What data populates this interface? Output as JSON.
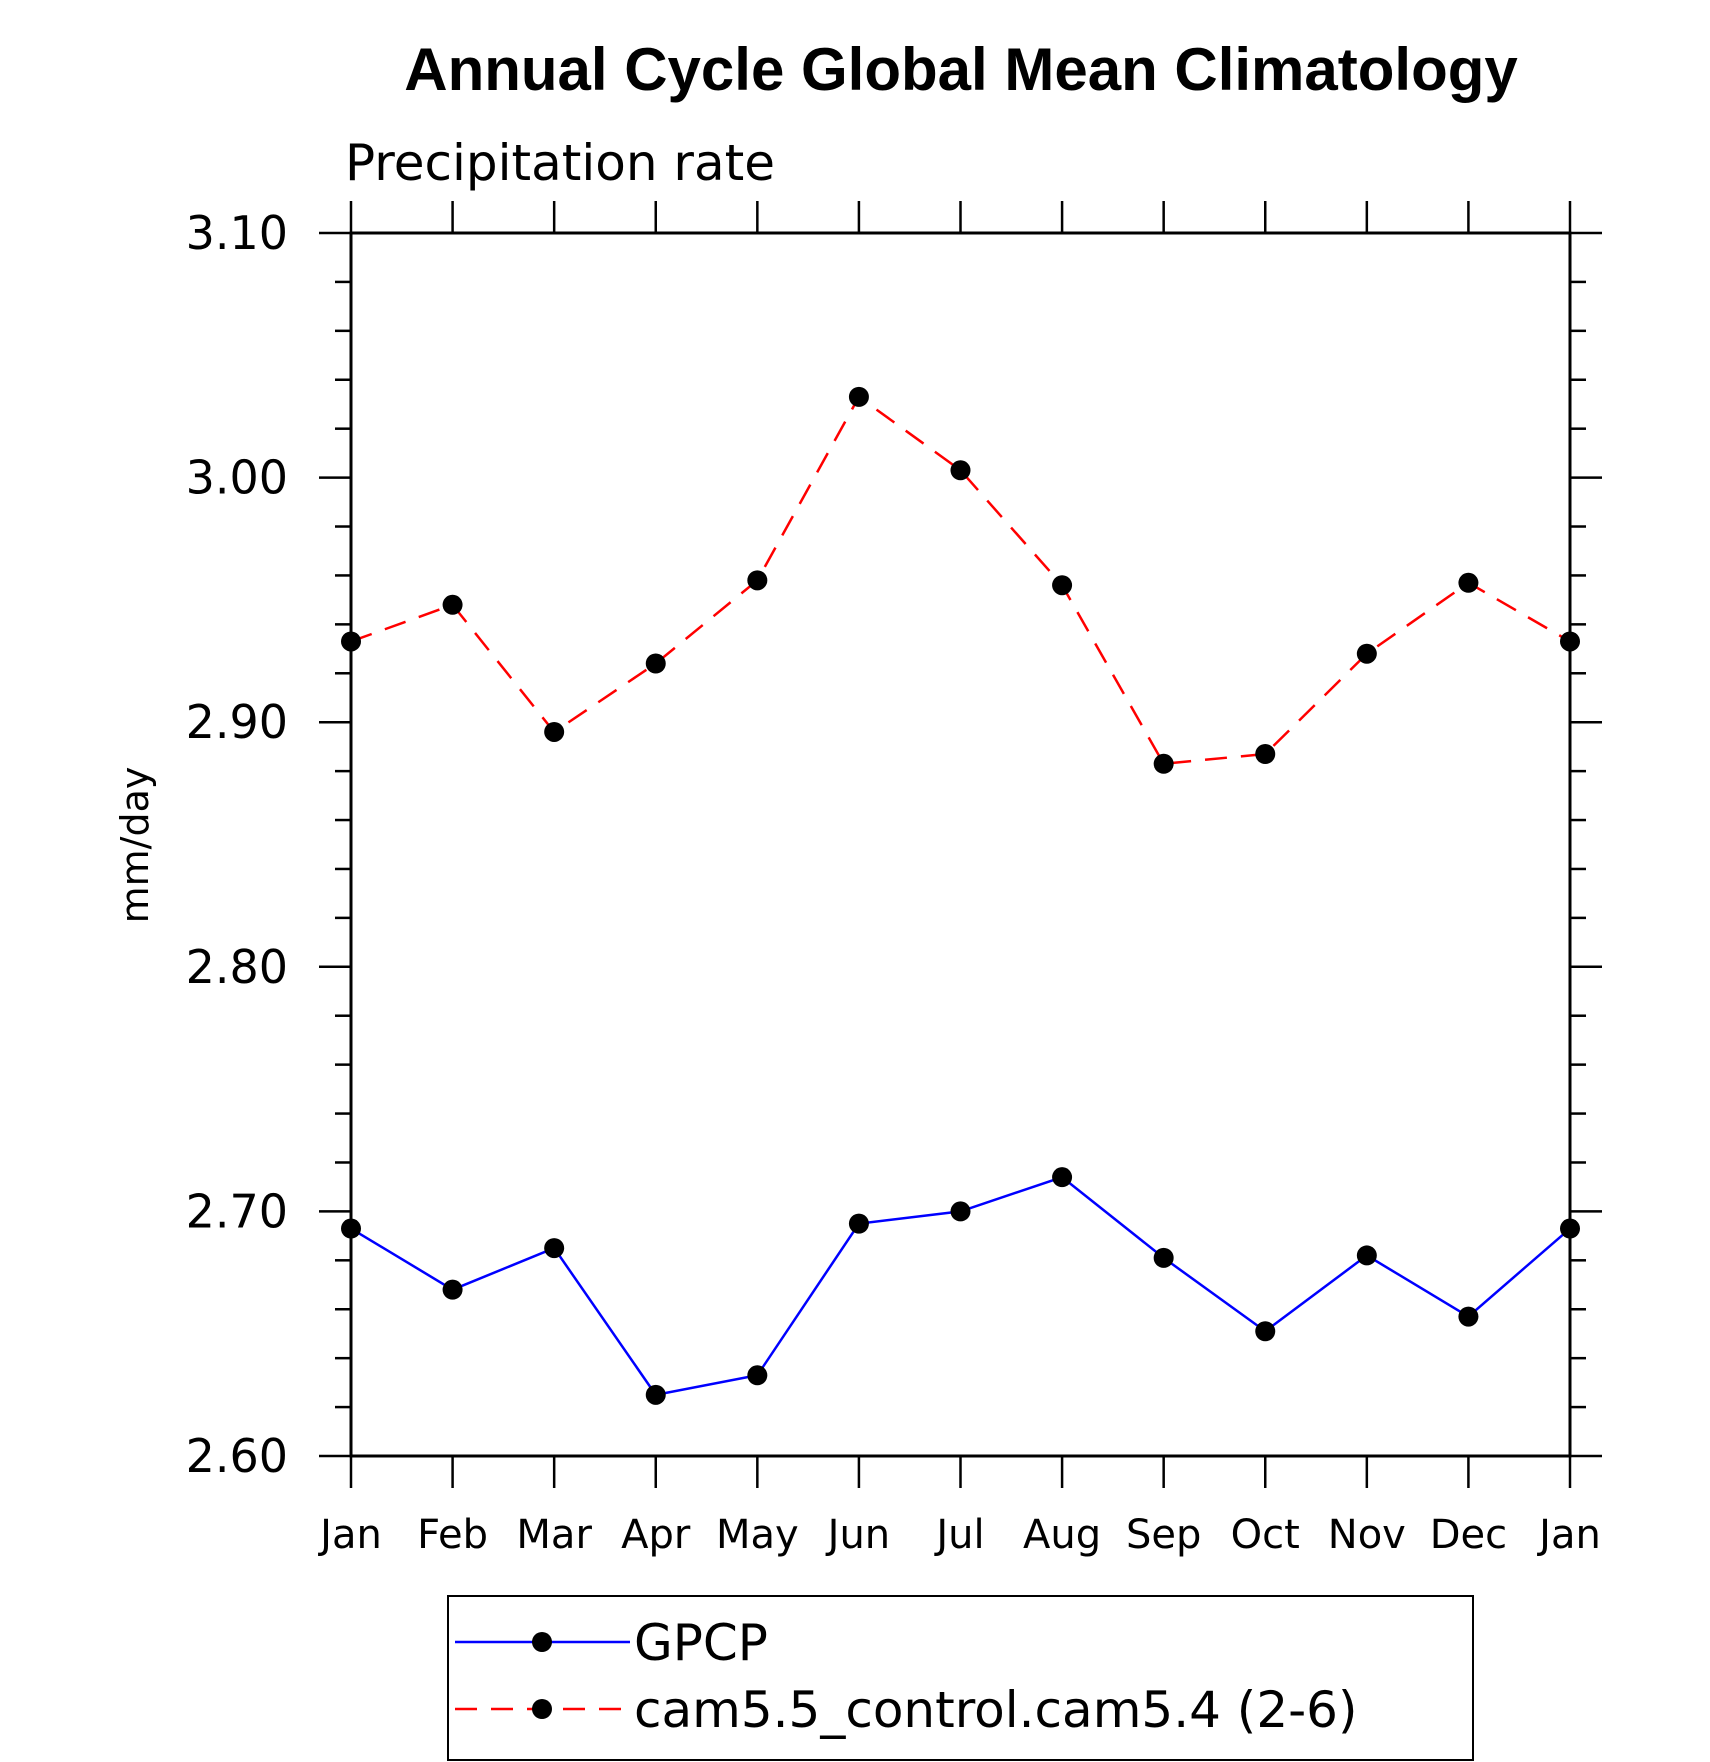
{
  "chart_data": {
    "type": "line",
    "title": "Annual Cycle Global Mean Climatology",
    "subtitle": "Precipitation rate",
    "ylabel": "mm/day",
    "categories": [
      "Jan",
      "Feb",
      "Mar",
      "Apr",
      "May",
      "Jun",
      "Jul",
      "Aug",
      "Sep",
      "Oct",
      "Nov",
      "Dec",
      "Jan"
    ],
    "ylim": [
      2.6,
      3.1
    ],
    "yticks": [
      "2.60",
      "2.70",
      "2.80",
      "2.90",
      "3.00",
      "3.10"
    ],
    "legend_position": "bottom",
    "series": [
      {
        "name": "GPCP",
        "color": "#0000ff",
        "line_style": "solid",
        "marker": "filled-circle",
        "values": [
          2.693,
          2.668,
          2.685,
          2.625,
          2.633,
          2.695,
          2.7,
          2.714,
          2.681,
          2.651,
          2.682,
          2.657,
          2.693
        ]
      },
      {
        "name": "cam5.5_control.cam5.4 (2-6)",
        "color": "#ff0000",
        "line_style": "dashed",
        "marker": "filled-circle",
        "values": [
          2.933,
          2.948,
          2.896,
          2.924,
          2.958,
          3.033,
          3.003,
          2.956,
          2.883,
          2.887,
          2.928,
          2.957,
          2.933
        ]
      }
    ]
  }
}
